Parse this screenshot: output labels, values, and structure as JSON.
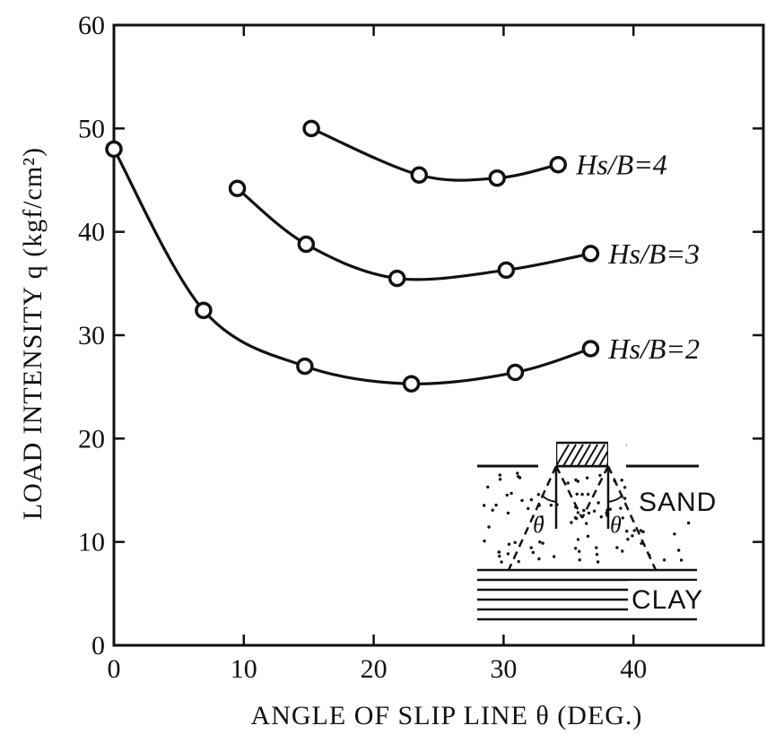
{
  "chart_data": {
    "type": "line",
    "title": "",
    "xlabel": "ANGLE OF SLIP LINE θ (DEG.)",
    "ylabel": "LOAD INTENSITY q (kgf/cm²)",
    "xlim": [
      0,
      50
    ],
    "ylim": [
      0,
      60
    ],
    "x_ticks": [
      "0",
      "10",
      "20",
      "30",
      "40"
    ],
    "y_ticks": [
      "0",
      "10",
      "20",
      "30",
      "40",
      "50",
      "60"
    ],
    "grid": false,
    "legend": "none",
    "series": [
      {
        "name": "Hs/B=4",
        "label": "Hs/B=4",
        "points": [
          [
            15.2,
            50.0
          ],
          [
            23.5,
            45.5
          ],
          [
            29.5,
            45.2
          ],
          [
            34.2,
            46.5
          ]
        ]
      },
      {
        "name": "Hs/B=3",
        "label": "Hs/B=3",
        "points": [
          [
            9.5,
            44.2
          ],
          [
            14.8,
            38.8
          ],
          [
            21.8,
            35.5
          ],
          [
            30.2,
            36.3
          ],
          [
            36.7,
            37.9
          ]
        ]
      },
      {
        "name": "Hs/B=2",
        "label": "Hs/B=2",
        "points": [
          [
            0,
            48.0
          ],
          [
            6.9,
            32.4
          ],
          [
            14.7,
            27.0
          ],
          [
            22.9,
            25.3
          ],
          [
            30.9,
            26.4
          ],
          [
            36.7,
            28.7
          ]
        ]
      }
    ],
    "inset": {
      "upper_layer": "SAND",
      "lower_layer": "CLAY",
      "angle_symbol": "θ"
    }
  }
}
